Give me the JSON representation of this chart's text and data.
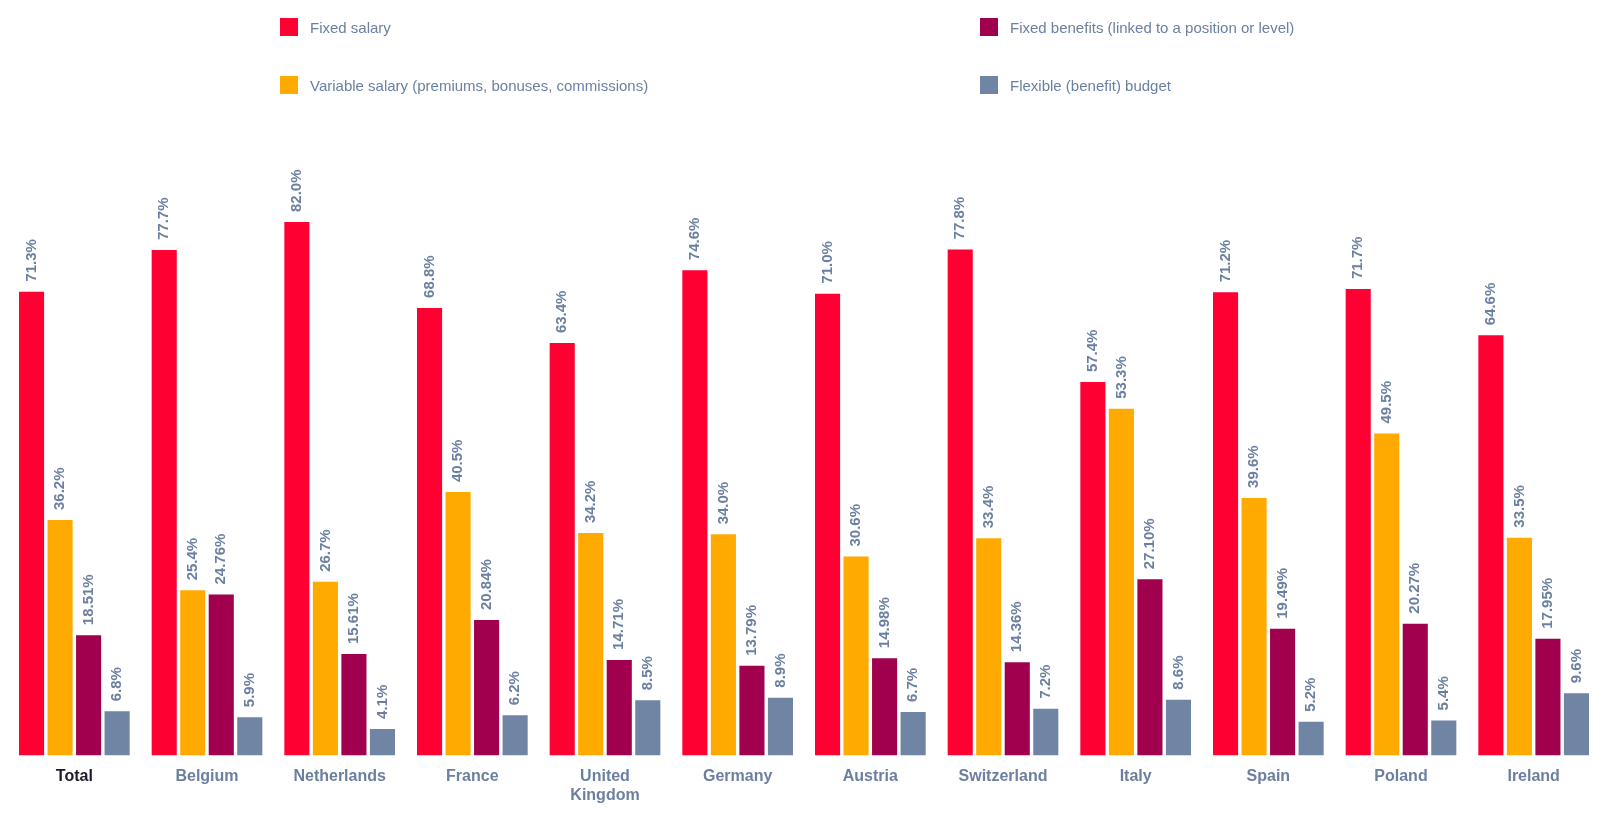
{
  "chart_data": {
    "type": "bar",
    "legend": "top",
    "data_labels": true,
    "categories": [
      "Total",
      "Belgium",
      "Netherlands",
      "France",
      "United Kingdom",
      "Germany",
      "Austria",
      "Switzerland",
      "Italy",
      "Spain",
      "Poland",
      "Ireland"
    ],
    "series": [
      {
        "name": "Fixed salary",
        "color": "#ff0033",
        "values": [
          71.3,
          77.7,
          82.0,
          68.8,
          63.4,
          74.6,
          71.0,
          77.8,
          57.4,
          71.2,
          71.7,
          64.6
        ],
        "value_labels": [
          "71.3%",
          "77.7%",
          "82.0%",
          "68.8%",
          "63.4%",
          "74.6%",
          "71.0%",
          "77.8%",
          "57.4%",
          "71.2%",
          "71.7%",
          "64.6%"
        ]
      },
      {
        "name": "Variable salary (premiums, bonuses, commissions)",
        "color": "#ffaa00",
        "values": [
          36.2,
          25.4,
          26.7,
          40.5,
          34.2,
          34.0,
          30.6,
          33.4,
          53.3,
          39.6,
          49.5,
          33.5
        ],
        "value_labels": [
          "36.2%",
          "25.4%",
          "26.7%",
          "40.5%",
          "34.2%",
          "34.0%",
          "30.6%",
          "33.4%",
          "53.3%",
          "39.6%",
          "49.5%",
          "33.5%"
        ]
      },
      {
        "name": "Fixed benefits (linked to a position or level)",
        "color": "#a0004d",
        "values": [
          18.51,
          24.76,
          15.61,
          20.84,
          14.71,
          13.79,
          14.98,
          14.36,
          27.1,
          19.49,
          20.27,
          17.95
        ],
        "value_labels": [
          "18.51%",
          "24.76%",
          "15.61%",
          "20.84%",
          "14.71%",
          "13.79%",
          "14.98%",
          "14.36%",
          "27.10%",
          "19.49%",
          "20.27%",
          "17.95%"
        ]
      },
      {
        "name": "Flexible (benefit) budget",
        "color": "#7084a3",
        "values": [
          6.8,
          5.9,
          4.1,
          6.2,
          8.5,
          8.9,
          6.7,
          7.2,
          8.6,
          5.2,
          5.4,
          9.6
        ],
        "value_labels": [
          "6.8%",
          "5.9%",
          "4.1%",
          "6.2%",
          "8.5%",
          "8.9%",
          "6.7%",
          "7.2%",
          "8.6%",
          "5.2%",
          "5.4%",
          "9.6%"
        ]
      }
    ]
  }
}
